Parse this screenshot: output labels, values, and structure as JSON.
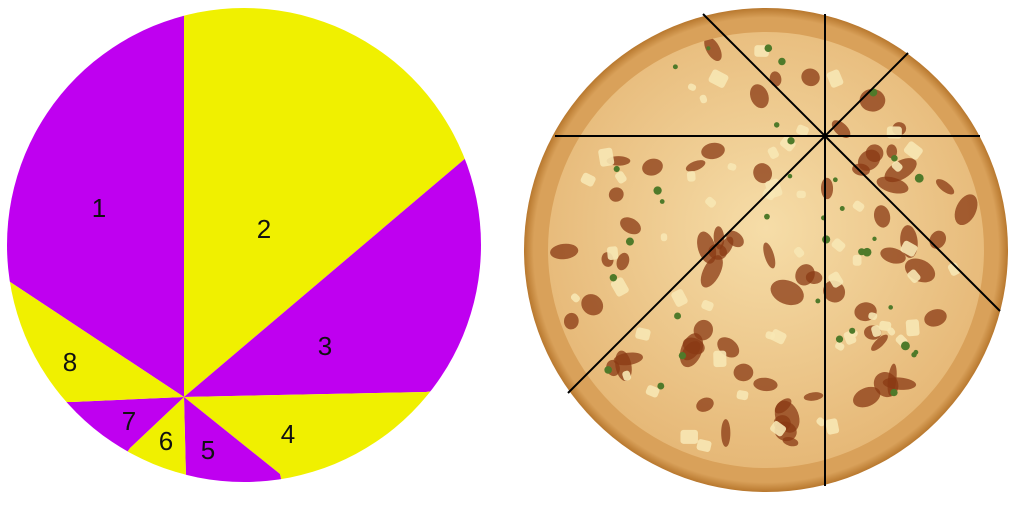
{
  "colors": {
    "purple": "#bf00f0",
    "yellow": "#f0f000",
    "cut_line": "#000000",
    "crust": "#d9a15a",
    "crust_edge": "#b8782e",
    "cheese": "#f2d49a",
    "sauce_spot": "#8a3a14",
    "pineapple": "#f7e7b4",
    "pepper": "#4f7a2a"
  },
  "pie_diagram": {
    "slices": [
      {
        "label": "1",
        "color": "purple"
      },
      {
        "label": "2",
        "color": "yellow"
      },
      {
        "label": "3",
        "color": "purple"
      },
      {
        "label": "4",
        "color": "yellow"
      },
      {
        "label": "5",
        "color": "purple"
      },
      {
        "label": "6",
        "color": "yellow"
      },
      {
        "label": "7",
        "color": "purple"
      },
      {
        "label": "8",
        "color": "yellow"
      }
    ]
  },
  "pizza_photo": {
    "cut_count": 8
  }
}
